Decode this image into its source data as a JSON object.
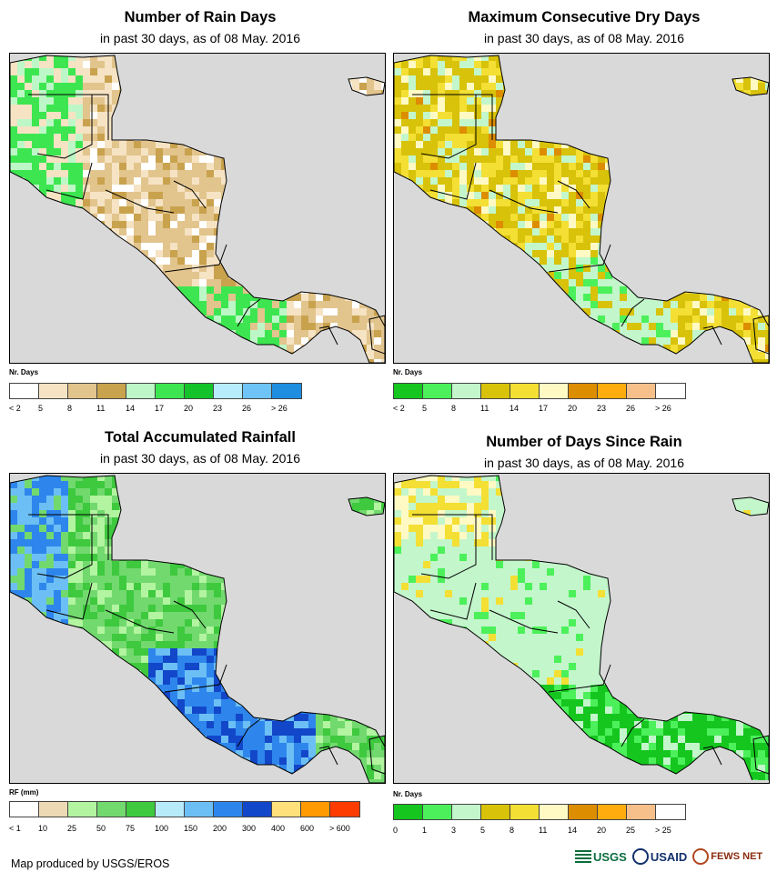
{
  "panels": [
    {
      "title": "Number of Rain Days",
      "subtitle": "in past 30 days, as of 08 May. 2016",
      "legend_title": "Nr. Days",
      "legend_colors": [
        "#ffffff",
        "#f5e3c3",
        "#e2c48d",
        "#c9a24e",
        "#bdf7c7",
        "#3de650",
        "#14c32a",
        "#b6ecfb",
        "#6ec4f7",
        "#1f8ee0"
      ],
      "legend_labels": [
        "< 2",
        "5",
        "8",
        "11",
        "14",
        "17",
        "20",
        "23",
        "26",
        "> 26"
      ],
      "palette": [
        "#e2c48d",
        "#f5e3c3",
        "#c9a24e",
        "#3de650",
        "#bdf7c7",
        "#ffffff"
      ]
    },
    {
      "title": "Maximum Consecutive Dry Days",
      "subtitle": "in past 30 days, as of 08 May. 2016",
      "legend_title": "Nr. Days",
      "legend_colors": [
        "#15c61f",
        "#4cf05a",
        "#c3f6cb",
        "#d8c20a",
        "#f4df34",
        "#fffac4",
        "#dd8d00",
        "#ffac0e",
        "#f7c08b",
        "#ffffff"
      ],
      "legend_labels": [
        "< 2",
        "5",
        "8",
        "11",
        "14",
        "17",
        "20",
        "23",
        "26",
        "> 26"
      ],
      "palette": [
        "#d8c20a",
        "#f4df34",
        "#c3f6cb",
        "#fffac4",
        "#4cf05a",
        "#dd8d00"
      ]
    },
    {
      "title": "Total Accumulated Rainfall",
      "subtitle": "in past 30 days, as of 08 May. 2016",
      "legend_title": "RF (mm)",
      "legend_colors": [
        "#ffffff",
        "#eed9b5",
        "#b2f4a0",
        "#72d96e",
        "#3ec93e",
        "#b7ebfa",
        "#6cbff5",
        "#2e86ec",
        "#1247c9",
        "#ffe07a",
        "#ff9a00",
        "#ff3c00"
      ],
      "legend_labels": [
        "< 1",
        "10",
        "25",
        "50",
        "75",
        "100",
        "150",
        "200",
        "300",
        "400",
        "600",
        "> 600"
      ],
      "palette": [
        "#72d96e",
        "#3ec93e",
        "#b2f4a0",
        "#2e86ec",
        "#6cbff5",
        "#1247c9"
      ]
    },
    {
      "title": "Number of Days Since Rain",
      "subtitle": "in past 30 days, as of 08 May. 2016",
      "legend_title": "Nr. Days",
      "legend_colors": [
        "#15c61f",
        "#4cf05a",
        "#c3f6cb",
        "#d8c20a",
        "#f4df34",
        "#fffac4",
        "#dd8d00",
        "#ffac0e",
        "#f7c08b",
        "#ffffff"
      ],
      "legend_labels": [
        "0",
        "1",
        "3",
        "5",
        "8",
        "11",
        "14",
        "20",
        "25",
        "> 25"
      ],
      "palette": [
        "#c3f6cb",
        "#c3f6cb",
        "#4cf05a",
        "#15c61f",
        "#f4df34",
        "#fffac4"
      ]
    }
  ],
  "footer": {
    "credit": "Map produced by USGS/EROS",
    "logo_usgs": "USGS",
    "logo_usaid": "USAID",
    "logo_fews": "FEWS NET"
  },
  "colors": {
    "ocean": "#d9d9d9",
    "border": "#000000"
  }
}
